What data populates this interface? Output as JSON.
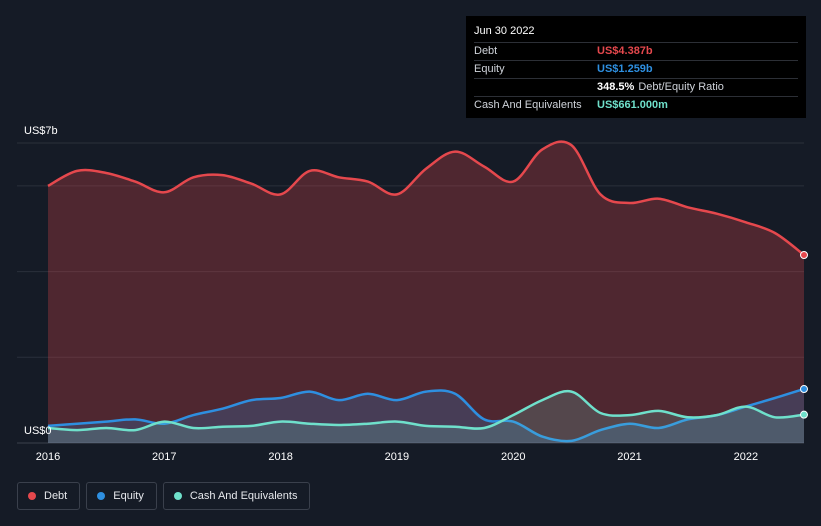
{
  "tooltip": {
    "date": "Jun 30 2022",
    "rows": [
      {
        "label": "Debt",
        "value": "US$4.387b",
        "color": "#e5484d"
      },
      {
        "label": "Equity",
        "value": "US$1.259b",
        "color": "#2e8fe0"
      },
      {
        "label": "",
        "value": "348.5%",
        "suffix": "Debt/Equity Ratio",
        "color": "#ffffff"
      },
      {
        "label": "Cash And Equivalents",
        "value": "US$661.000m",
        "color": "#6fe0cb"
      }
    ]
  },
  "chart_data": {
    "type": "area",
    "ylabel_top": "US$7b",
    "ylabel_bottom": "US$0",
    "ylim": [
      0,
      7
    ],
    "xlim": [
      2016,
      2022.5
    ],
    "x_ticks": [
      "2016",
      "2017",
      "2018",
      "2019",
      "2020",
      "2021",
      "2022"
    ],
    "grid": true,
    "series": [
      {
        "name": "Debt",
        "color": "#e5484d",
        "x": [
          2016.0,
          2016.25,
          2016.5,
          2016.75,
          2017.0,
          2017.25,
          2017.5,
          2017.75,
          2018.0,
          2018.25,
          2018.5,
          2018.75,
          2019.0,
          2019.25,
          2019.5,
          2019.75,
          2020.0,
          2020.25,
          2020.5,
          2020.75,
          2021.0,
          2021.25,
          2021.5,
          2021.75,
          2022.0,
          2022.25,
          2022.5
        ],
        "y": [
          6.0,
          6.35,
          6.3,
          6.1,
          5.85,
          6.2,
          6.25,
          6.05,
          5.8,
          6.35,
          6.2,
          6.1,
          5.8,
          6.4,
          6.8,
          6.45,
          6.1,
          6.85,
          6.95,
          5.8,
          5.6,
          5.7,
          5.5,
          5.35,
          5.15,
          4.9,
          4.387
        ]
      },
      {
        "name": "Equity",
        "color": "#2e8fe0",
        "x": [
          2016.0,
          2016.25,
          2016.5,
          2016.75,
          2017.0,
          2017.25,
          2017.5,
          2017.75,
          2018.0,
          2018.25,
          2018.5,
          2018.75,
          2019.0,
          2019.25,
          2019.5,
          2019.75,
          2020.0,
          2020.25,
          2020.5,
          2020.75,
          2021.0,
          2021.25,
          2021.5,
          2021.75,
          2022.0,
          2022.25,
          2022.5
        ],
        "y": [
          0.4,
          0.45,
          0.5,
          0.55,
          0.45,
          0.65,
          0.8,
          1.0,
          1.05,
          1.2,
          1.0,
          1.15,
          1.0,
          1.2,
          1.15,
          0.55,
          0.5,
          0.15,
          0.05,
          0.3,
          0.45,
          0.35,
          0.55,
          0.65,
          0.85,
          1.05,
          1.259
        ]
      },
      {
        "name": "Cash And Equivalents",
        "color": "#6fe0cb",
        "x": [
          2016.0,
          2016.25,
          2016.5,
          2016.75,
          2017.0,
          2017.25,
          2017.5,
          2017.75,
          2018.0,
          2018.25,
          2018.5,
          2018.75,
          2019.0,
          2019.25,
          2019.5,
          2019.75,
          2020.0,
          2020.25,
          2020.5,
          2020.75,
          2021.0,
          2021.25,
          2021.5,
          2021.75,
          2022.0,
          2022.25,
          2022.5
        ],
        "y": [
          0.35,
          0.3,
          0.35,
          0.3,
          0.5,
          0.35,
          0.38,
          0.4,
          0.5,
          0.45,
          0.42,
          0.45,
          0.5,
          0.4,
          0.38,
          0.35,
          0.65,
          1.0,
          1.2,
          0.7,
          0.65,
          0.75,
          0.6,
          0.65,
          0.85,
          0.6,
          0.661
        ]
      }
    ]
  },
  "legend": [
    {
      "label": "Debt",
      "color": "#e5484d"
    },
    {
      "label": "Equity",
      "color": "#2e8fe0"
    },
    {
      "label": "Cash And Equivalents",
      "color": "#6fe0cb"
    }
  ]
}
